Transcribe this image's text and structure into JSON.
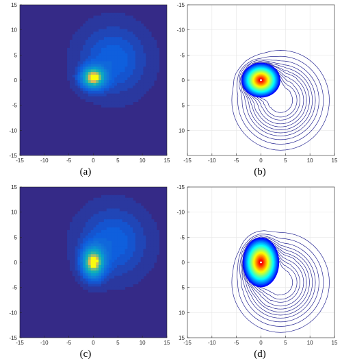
{
  "chart_data": [
    {
      "panel": "a",
      "type": "heatmap",
      "caption": "(a)",
      "xlim": [
        -15,
        15
      ],
      "ylim": [
        -15,
        15
      ],
      "y_direction": "up",
      "xticks": [
        -15,
        -10,
        -5,
        0,
        5,
        10,
        15
      ],
      "yticks": [
        -15,
        -10,
        -5,
        0,
        5,
        10,
        15
      ],
      "grid": false,
      "colormap": "parula",
      "components": [
        {
          "cx": 0,
          "cy": 0.5,
          "sx": 1.6,
          "sy": 1.4,
          "w": 1.0
        },
        {
          "cx": 4,
          "cy": 4,
          "sx": 4.5,
          "sy": 4.5,
          "w": 0.22
        }
      ]
    },
    {
      "panel": "b",
      "type": "contour",
      "caption": "(b)",
      "xlim": [
        -15,
        15
      ],
      "ylim": [
        -15,
        15
      ],
      "y_direction": "down",
      "xticks": [
        -15,
        -10,
        -5,
        0,
        5,
        10,
        15
      ],
      "yticks": [
        -15,
        -10,
        -5,
        0,
        5,
        10
      ],
      "grid": true,
      "colormap": "jet",
      "components": [
        {
          "cx": 0,
          "cy": 0,
          "sx": 1.6,
          "sy": 1.4,
          "w": 1.0
        },
        {
          "cx": 4,
          "cy": 4,
          "sx": 4.5,
          "sy": 4.5,
          "w": 0.22
        }
      ]
    },
    {
      "panel": "c",
      "type": "heatmap",
      "caption": "(c)",
      "xlim": [
        -15,
        15
      ],
      "ylim": [
        -15,
        15
      ],
      "y_direction": "up",
      "xticks": [
        -15,
        -10,
        -5,
        0,
        5,
        10,
        15
      ],
      "yticks": [
        -15,
        -10,
        -5,
        0,
        5,
        10,
        15
      ],
      "grid": false,
      "colormap": "parula",
      "components": [
        {
          "cx": 0,
          "cy": 0,
          "sx": 1.5,
          "sy": 2.0,
          "w": 1.0
        },
        {
          "cx": 4,
          "cy": 4,
          "sx": 4.5,
          "sy": 4.5,
          "w": 0.22
        }
      ]
    },
    {
      "panel": "d",
      "type": "contour",
      "caption": "(d)",
      "xlim": [
        -15,
        15
      ],
      "ylim": [
        -15,
        15
      ],
      "y_direction": "down",
      "xticks": [
        -15,
        -10,
        -5,
        0,
        5,
        10,
        15
      ],
      "yticks": [
        -15,
        -10,
        -5,
        0,
        5,
        10,
        15
      ],
      "grid": true,
      "colormap": "jet",
      "components": [
        {
          "cx": 0,
          "cy": 0,
          "sx": 1.5,
          "sy": 2.0,
          "w": 1.0
        },
        {
          "cx": 4,
          "cy": 4,
          "sx": 4.5,
          "sy": 4.5,
          "w": 0.22
        }
      ]
    }
  ]
}
